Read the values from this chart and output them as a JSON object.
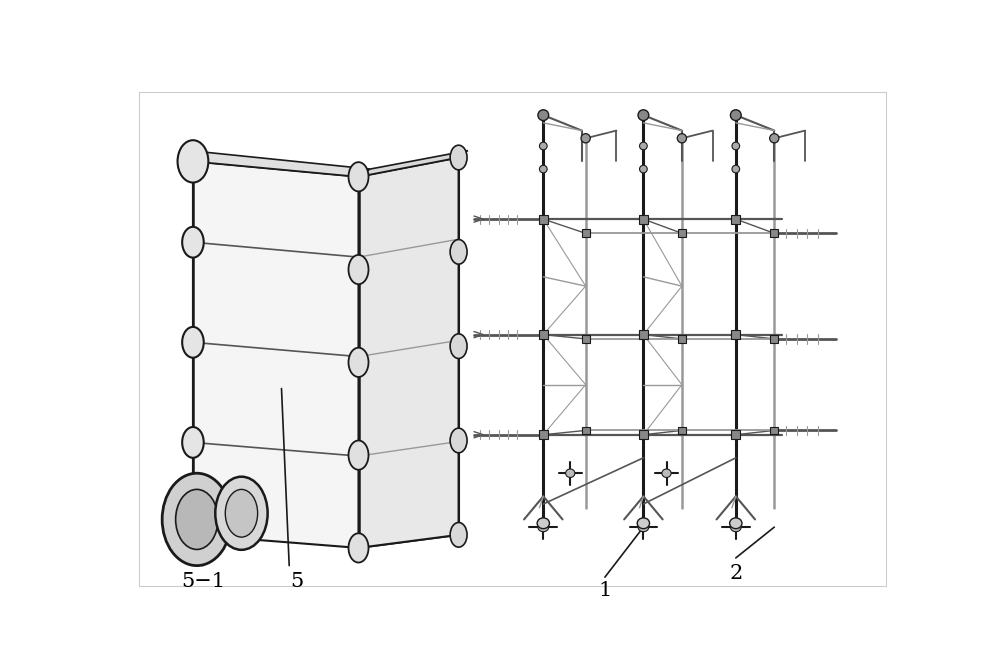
{
  "background_color": "#ffffff",
  "lc": "#1a1a1a",
  "lc_gray": "#999999",
  "lc_med": "#555555",
  "fig_width": 10.0,
  "fig_height": 6.71,
  "dpi": 100,
  "labels": {
    "1": "1",
    "2": "2",
    "5": "5",
    "51": "5−1"
  },
  "label_fontsize": 15
}
